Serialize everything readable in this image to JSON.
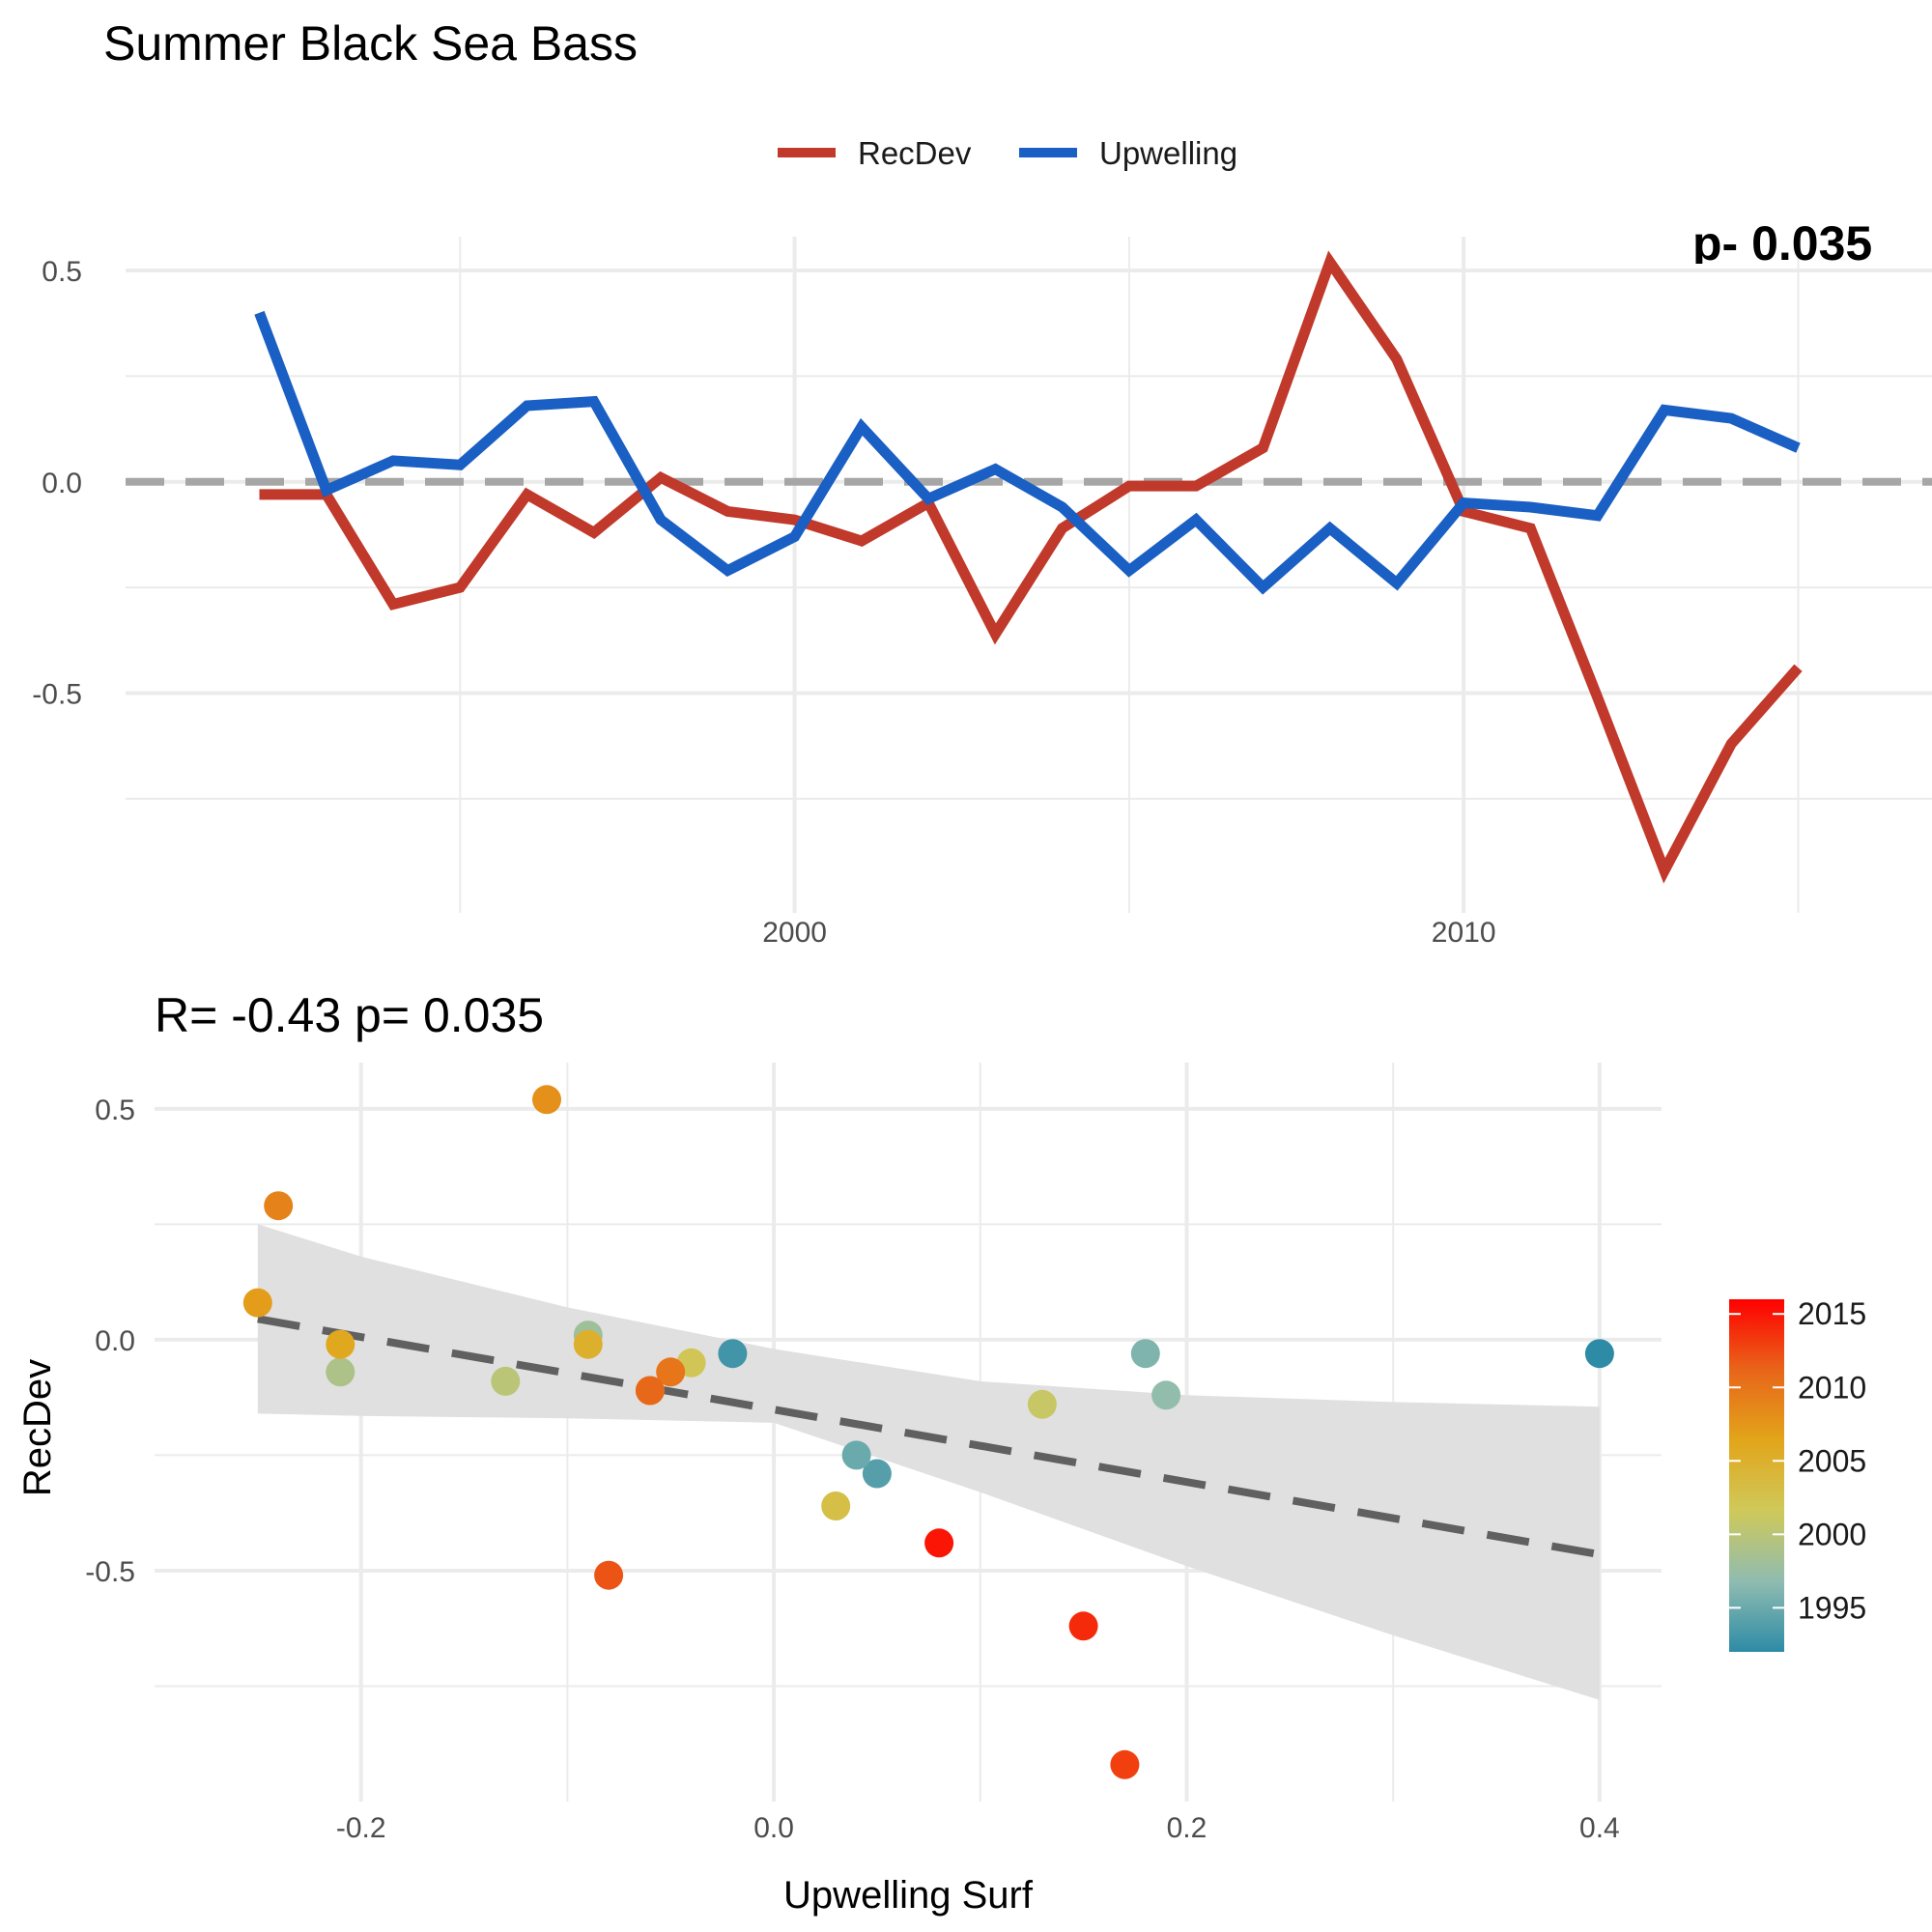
{
  "title": "Summer Black Sea Bass",
  "colors": {
    "recdev": "#c0392b",
    "upwelling": "#1a5fc4",
    "zero_line": "#a6a6a6",
    "fit_line": "#606060",
    "ribbon": "#e0e0e0",
    "grid": "#ebebeb"
  },
  "chart_data": [
    {
      "type": "line",
      "legend": [
        "RecDev",
        "Upwelling"
      ],
      "legend_position": "top",
      "corner_text": "p- 0.035",
      "x": [
        1992,
        1993,
        1994,
        1995,
        1996,
        1997,
        1998,
        1999,
        2000,
        2001,
        2002,
        2003,
        2004,
        2005,
        2006,
        2007,
        2008,
        2009,
        2010,
        2011,
        2012,
        2013,
        2014,
        2015,
        2016
      ],
      "series": [
        {
          "name": "RecDev",
          "color": "#c0392b",
          "values": [
            -0.03,
            -0.03,
            -0.29,
            -0.25,
            -0.03,
            -0.12,
            0.01,
            -0.07,
            -0.09,
            -0.14,
            -0.05,
            -0.36,
            -0.11,
            -0.01,
            -0.01,
            0.08,
            0.52,
            0.29,
            -0.07,
            -0.11,
            -0.51,
            -0.92,
            -0.62,
            -0.44,
            null
          ]
        },
        {
          "name": "Upwelling",
          "color": "#1a5fc4",
          "values": [
            0.4,
            -0.02,
            0.05,
            0.04,
            0.18,
            0.19,
            -0.09,
            -0.21,
            -0.13,
            0.13,
            -0.04,
            0.03,
            -0.06,
            -0.21,
            -0.09,
            -0.25,
            -0.11,
            -0.24,
            -0.05,
            -0.06,
            -0.08,
            0.17,
            0.15,
            0.08,
            null
          ]
        }
      ],
      "xticks": [
        2000,
        2010
      ],
      "yticks": [
        -0.5,
        0.0,
        0.5
      ],
      "ytick_labels": [
        "-0.5",
        "0.0",
        "0.5"
      ],
      "xlim": [
        1990,
        2017
      ],
      "ylim": [
        -1.02,
        0.58
      ],
      "hline": 0
    },
    {
      "type": "scatter",
      "subtitle": "R= -0.43  p= 0.035",
      "xlabel": "Upwelling Surf",
      "ylabel": "RecDev",
      "xlim": [
        -0.3,
        0.43
      ],
      "ylim": [
        -1.0,
        0.6
      ],
      "xticks": [
        -0.2,
        0.0,
        0.2,
        0.4
      ],
      "xtick_labels": [
        "-0.2",
        "0.0",
        "0.2",
        "0.4"
      ],
      "yticks": [
        -0.5,
        0.0,
        0.5
      ],
      "ytick_labels": [
        "-0.5",
        "0.0",
        "0.5"
      ],
      "points": [
        {
          "x": 0.4,
          "y": -0.03,
          "year": 1992
        },
        {
          "x": -0.02,
          "y": -0.03,
          "year": 1993
        },
        {
          "x": 0.05,
          "y": -0.29,
          "year": 1994
        },
        {
          "x": 0.04,
          "y": -0.25,
          "year": 1995
        },
        {
          "x": 0.18,
          "y": -0.03,
          "year": 1996
        },
        {
          "x": 0.19,
          "y": -0.12,
          "year": 1997
        },
        {
          "x": -0.09,
          "y": 0.01,
          "year": 1998
        },
        {
          "x": -0.21,
          "y": -0.07,
          "year": 1999
        },
        {
          "x": -0.13,
          "y": -0.09,
          "year": 2000
        },
        {
          "x": 0.13,
          "y": -0.14,
          "year": 2001
        },
        {
          "x": -0.04,
          "y": -0.05,
          "year": 2002
        },
        {
          "x": 0.03,
          "y": -0.36,
          "year": 2003
        },
        {
          "x": -0.06,
          "y": -0.11,
          "year": 2004
        },
        {
          "x": -0.09,
          "y": -0.01,
          "year": 2005
        },
        {
          "x": -0.21,
          "y": -0.01,
          "year": 2006
        },
        {
          "x": -0.25,
          "y": 0.08,
          "year": 2007
        },
        {
          "x": -0.11,
          "y": 0.52,
          "year": 2008
        },
        {
          "x": -0.24,
          "y": 0.29,
          "year": 2009
        },
        {
          "x": -0.05,
          "y": -0.07,
          "year": 2010
        },
        {
          "x": -0.06,
          "y": -0.11,
          "year": 2011
        },
        {
          "x": -0.08,
          "y": -0.51,
          "year": 2012
        },
        {
          "x": 0.17,
          "y": -0.92,
          "year": 2013
        },
        {
          "x": 0.15,
          "y": -0.62,
          "year": 2014
        },
        {
          "x": 0.08,
          "y": -0.44,
          "year": 2015
        }
      ],
      "fit": {
        "x0": -0.25,
        "y0": 0.045,
        "x1": 0.4,
        "y1": -0.465
      },
      "ribbon": [
        {
          "x": -0.25,
          "lo": -0.16,
          "hi": 0.25
        },
        {
          "x": -0.2,
          "lo": -0.165,
          "hi": 0.18
        },
        {
          "x": -0.1,
          "lo": -0.17,
          "hi": 0.07
        },
        {
          "x": 0.0,
          "lo": -0.18,
          "hi": -0.02
        },
        {
          "x": 0.1,
          "lo": -0.33,
          "hi": -0.09
        },
        {
          "x": 0.2,
          "lo": -0.49,
          "hi": -0.12
        },
        {
          "x": 0.3,
          "lo": -0.64,
          "hi": -0.135
        },
        {
          "x": 0.4,
          "lo": -0.78,
          "hi": -0.145
        }
      ],
      "colorbar": {
        "ticks": [
          1995,
          2000,
          2005,
          2010,
          2015
        ],
        "tick_labels": [
          "1995",
          "2000",
          "2005",
          "2010",
          "2015"
        ],
        "range": [
          1992,
          2016
        ],
        "stops": [
          "#2e8ba6",
          "#8fbcb0",
          "#cfc95a",
          "#e2a51a",
          "#e8651a",
          "#ff0000"
        ]
      }
    }
  ]
}
